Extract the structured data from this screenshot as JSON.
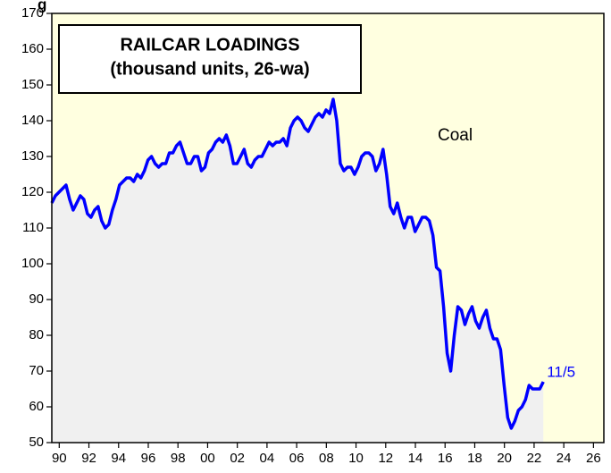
{
  "chart_data": {
    "type": "line",
    "title_fragment": "g",
    "title": "RAILCAR LOADINGS",
    "subtitle": "(thousand units, 26-wa)",
    "annotation": "Coal",
    "end_label": "11/5",
    "background": "#ffffe0",
    "area_color": "#f0f0f0",
    "xlim": [
      1989.5,
      2026.7
    ],
    "ylim": [
      50,
      170
    ],
    "yticks": [
      50,
      60,
      70,
      80,
      90,
      100,
      110,
      120,
      130,
      140,
      150,
      160,
      170
    ],
    "xticks": [
      {
        "value": 1990,
        "label": "90"
      },
      {
        "value": 1992,
        "label": "92"
      },
      {
        "value": 1994,
        "label": "94"
      },
      {
        "value": 1996,
        "label": "96"
      },
      {
        "value": 1998,
        "label": "98"
      },
      {
        "value": 2000,
        "label": "00"
      },
      {
        "value": 2002,
        "label": "02"
      },
      {
        "value": 2004,
        "label": "04"
      },
      {
        "value": 2006,
        "label": "06"
      },
      {
        "value": 2008,
        "label": "08"
      },
      {
        "value": 2010,
        "label": "10"
      },
      {
        "value": 2012,
        "label": "12"
      },
      {
        "value": 2014,
        "label": "14"
      },
      {
        "value": 2016,
        "label": "16"
      },
      {
        "value": 2018,
        "label": "18"
      },
      {
        "value": 2020,
        "label": "20"
      },
      {
        "value": 2022,
        "label": "22"
      },
      {
        "value": 2024,
        "label": "24"
      },
      {
        "value": 2026,
        "label": "26"
      }
    ],
    "x": [
      1989.5,
      1989.74,
      1989.98,
      1990.22,
      1990.46,
      1990.7,
      1990.94,
      1991.18,
      1991.42,
      1991.66,
      1991.9,
      1992.14,
      1992.38,
      1992.62,
      1992.86,
      1993.1,
      1993.34,
      1993.58,
      1993.82,
      1994.06,
      1994.3,
      1994.54,
      1994.78,
      1995.02,
      1995.26,
      1995.5,
      1995.74,
      1995.98,
      1996.22,
      1996.46,
      1996.7,
      1996.94,
      1997.18,
      1997.42,
      1997.66,
      1997.9,
      1998.14,
      1998.38,
      1998.62,
      1998.86,
      1999.1,
      1999.34,
      1999.58,
      1999.82,
      2000.06,
      2000.3,
      2000.54,
      2000.78,
      2001.02,
      2001.26,
      2001.5,
      2001.74,
      2001.98,
      2002.22,
      2002.46,
      2002.7,
      2002.94,
      2003.18,
      2003.42,
      2003.66,
      2003.9,
      2004.14,
      2004.38,
      2004.62,
      2004.86,
      2005.1,
      2005.34,
      2005.58,
      2005.82,
      2006.06,
      2006.3,
      2006.54,
      2006.78,
      2007.02,
      2007.26,
      2007.5,
      2007.74,
      2007.98,
      2008.22,
      2008.46,
      2008.7,
      2008.94,
      2009.18,
      2009.42,
      2009.66,
      2009.9,
      2010.14,
      2010.38,
      2010.62,
      2010.86,
      2011.1,
      2011.34,
      2011.58,
      2011.82,
      2012.06,
      2012.3,
      2012.54,
      2012.78,
      2013.02,
      2013.26,
      2013.5,
      2013.74,
      2013.98,
      2014.22,
      2014.46,
      2014.7,
      2014.94,
      2015.18,
      2015.42,
      2015.66,
      2015.9,
      2016.14,
      2016.38,
      2016.62,
      2016.86,
      2017.1,
      2017.34,
      2017.58,
      2017.82,
      2018.06,
      2018.3,
      2018.54,
      2018.78,
      2019.02,
      2019.26,
      2019.5,
      2019.74,
      2019.98,
      2020.22,
      2020.46,
      2020.7,
      2020.94,
      2021.18,
      2021.42,
      2021.66,
      2021.9,
      2022.14,
      2022.38,
      2022.62
    ],
    "series": [
      {
        "name": "Coal",
        "color": "#0000ff",
        "values": [
          117,
          119,
          120,
          121,
          122,
          118,
          115,
          117,
          119,
          118,
          114,
          113,
          115,
          116,
          112,
          110,
          111,
          115,
          118,
          122,
          123,
          124,
          124,
          123,
          125,
          124,
          126,
          129,
          130,
          128,
          127,
          128,
          128,
          131,
          131,
          133,
          134,
          131,
          128,
          128,
          130,
          130,
          126,
          127,
          131,
          132,
          134,
          135,
          134,
          136,
          133,
          128,
          128,
          130,
          132,
          128,
          127,
          129,
          130,
          130,
          132,
          134,
          133,
          134,
          134,
          135,
          133,
          138,
          140,
          141,
          140,
          138,
          137,
          139,
          141,
          142,
          141,
          143,
          142,
          146,
          140,
          128,
          126,
          127,
          127,
          125,
          127,
          130,
          131,
          131,
          130,
          126,
          128,
          132,
          125,
          116,
          114,
          117,
          113,
          110,
          113,
          113,
          109,
          111,
          113,
          113,
          112,
          108,
          99,
          98,
          88,
          75,
          70,
          80,
          88,
          87,
          83,
          86,
          88,
          84,
          82,
          85,
          87,
          82,
          79,
          79,
          76,
          66,
          57,
          54,
          56,
          59,
          60,
          62,
          66,
          65,
          65,
          65,
          67
        ]
      }
    ]
  }
}
